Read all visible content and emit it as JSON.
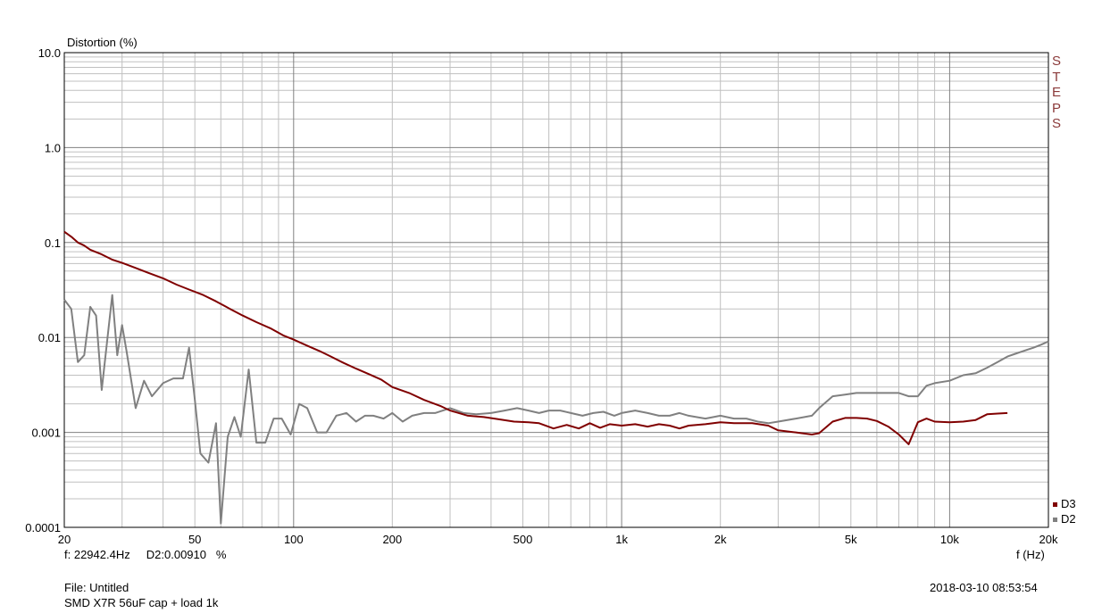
{
  "chart_data": {
    "type": "line",
    "ylabel": "Distortion (%)",
    "xlabel": "f (Hz)",
    "x_scale": "log",
    "y_scale": "log",
    "xlim": [
      20,
      20000
    ],
    "ylim": [
      0.0001,
      10.0
    ],
    "grid": true,
    "legend_position": "bottom-right",
    "x_ticks": [
      {
        "value": 20,
        "label": "20"
      },
      {
        "value": 50,
        "label": "50"
      },
      {
        "value": 100,
        "label": "100"
      },
      {
        "value": 200,
        "label": "200"
      },
      {
        "value": 500,
        "label": "500"
      },
      {
        "value": 1000,
        "label": "1k"
      },
      {
        "value": 2000,
        "label": "2k"
      },
      {
        "value": 5000,
        "label": "5k"
      },
      {
        "value": 10000,
        "label": "10k"
      },
      {
        "value": 20000,
        "label": "20k"
      }
    ],
    "y_ticks": [
      {
        "value": 10,
        "label": "10.0"
      },
      {
        "value": 1,
        "label": "1.0"
      },
      {
        "value": 0.1,
        "label": "0.1"
      },
      {
        "value": 0.01,
        "label": "0.01"
      },
      {
        "value": 0.001,
        "label": "0.001"
      },
      {
        "value": 0.0001,
        "label": "0.0001"
      }
    ],
    "series": [
      {
        "name": "D3",
        "color": "#800000",
        "points": [
          [
            20,
            0.13
          ],
          [
            21,
            0.115
          ],
          [
            22,
            0.1
          ],
          [
            23,
            0.093
          ],
          [
            24,
            0.084
          ],
          [
            26,
            0.075
          ],
          [
            28,
            0.066
          ],
          [
            30,
            0.061
          ],
          [
            33,
            0.054
          ],
          [
            36,
            0.048
          ],
          [
            40,
            0.042
          ],
          [
            44,
            0.036
          ],
          [
            48,
            0.032
          ],
          [
            53,
            0.028
          ],
          [
            58,
            0.024
          ],
          [
            64,
            0.02
          ],
          [
            70,
            0.017
          ],
          [
            77,
            0.0145
          ],
          [
            85,
            0.0125
          ],
          [
            93,
            0.0105
          ],
          [
            100,
            0.0095
          ],
          [
            110,
            0.0082
          ],
          [
            120,
            0.0072
          ],
          [
            130,
            0.0063
          ],
          [
            142,
            0.0054
          ],
          [
            155,
            0.0047
          ],
          [
            170,
            0.0041
          ],
          [
            185,
            0.0036
          ],
          [
            200,
            0.003
          ],
          [
            225,
            0.0026
          ],
          [
            250,
            0.0022
          ],
          [
            280,
            0.0019
          ],
          [
            300,
            0.0017
          ],
          [
            340,
            0.0015
          ],
          [
            380,
            0.00145
          ],
          [
            420,
            0.00138
          ],
          [
            470,
            0.0013
          ],
          [
            520,
            0.00128
          ],
          [
            560,
            0.00125
          ],
          [
            620,
            0.0011
          ],
          [
            680,
            0.0012
          ],
          [
            740,
            0.0011
          ],
          [
            800,
            0.00125
          ],
          [
            860,
            0.00112
          ],
          [
            920,
            0.00122
          ],
          [
            1000,
            0.00118
          ],
          [
            1100,
            0.00122
          ],
          [
            1200,
            0.00115
          ],
          [
            1300,
            0.00122
          ],
          [
            1400,
            0.00118
          ],
          [
            1500,
            0.0011
          ],
          [
            1600,
            0.00118
          ],
          [
            1800,
            0.00122
          ],
          [
            2000,
            0.00128
          ],
          [
            2200,
            0.00125
          ],
          [
            2500,
            0.00125
          ],
          [
            2800,
            0.00118
          ],
          [
            3000,
            0.00105
          ],
          [
            3400,
            0.001
          ],
          [
            3800,
            0.00095
          ],
          [
            4000,
            0.00098
          ],
          [
            4400,
            0.0013
          ],
          [
            4800,
            0.00142
          ],
          [
            5200,
            0.00142
          ],
          [
            5600,
            0.0014
          ],
          [
            6000,
            0.00132
          ],
          [
            6500,
            0.00115
          ],
          [
            7000,
            0.00095
          ],
          [
            7500,
            0.00075
          ],
          [
            8000,
            0.00128
          ],
          [
            8500,
            0.0014
          ],
          [
            9000,
            0.0013
          ],
          [
            10000,
            0.00128
          ],
          [
            11000,
            0.0013
          ],
          [
            12000,
            0.00135
          ],
          [
            13000,
            0.00155
          ],
          [
            14000,
            0.00158
          ],
          [
            15000,
            0.0016
          ]
        ]
      },
      {
        "name": "D2",
        "color": "#808080",
        "points": [
          [
            20,
            0.025
          ],
          [
            21,
            0.02
          ],
          [
            22,
            0.0055
          ],
          [
            23,
            0.0065
          ],
          [
            24,
            0.021
          ],
          [
            25,
            0.017
          ],
          [
            26,
            0.0028
          ],
          [
            28,
            0.028
          ],
          [
            29,
            0.0065
          ],
          [
            30,
            0.0135
          ],
          [
            31,
            0.007
          ],
          [
            33,
            0.0018
          ],
          [
            35,
            0.0035
          ],
          [
            37,
            0.0024
          ],
          [
            40,
            0.0033
          ],
          [
            43,
            0.0037
          ],
          [
            46,
            0.0037
          ],
          [
            48,
            0.0078
          ],
          [
            50,
            0.0022
          ],
          [
            52,
            0.0006
          ],
          [
            55,
            0.00048
          ],
          [
            58,
            0.00125
          ],
          [
            60,
            0.00011
          ],
          [
            63,
            0.0009
          ],
          [
            66,
            0.00145
          ],
          [
            69,
            0.0009
          ],
          [
            73,
            0.0046
          ],
          [
            77,
            0.00078
          ],
          [
            82,
            0.00078
          ],
          [
            87,
            0.0014
          ],
          [
            92,
            0.0014
          ],
          [
            98,
            0.00095
          ],
          [
            104,
            0.002
          ],
          [
            110,
            0.0018
          ],
          [
            118,
            0.001
          ],
          [
            126,
            0.001
          ],
          [
            135,
            0.0015
          ],
          [
            145,
            0.0016
          ],
          [
            155,
            0.0013
          ],
          [
            165,
            0.0015
          ],
          [
            175,
            0.0015
          ],
          [
            188,
            0.0014
          ],
          [
            200,
            0.0016
          ],
          [
            215,
            0.0013
          ],
          [
            230,
            0.0015
          ],
          [
            250,
            0.0016
          ],
          [
            270,
            0.0016
          ],
          [
            300,
            0.0018
          ],
          [
            330,
            0.0016
          ],
          [
            360,
            0.00155
          ],
          [
            400,
            0.0016
          ],
          [
            440,
            0.0017
          ],
          [
            480,
            0.0018
          ],
          [
            520,
            0.0017
          ],
          [
            560,
            0.0016
          ],
          [
            600,
            0.0017
          ],
          [
            650,
            0.0017
          ],
          [
            700,
            0.0016
          ],
          [
            760,
            0.0015
          ],
          [
            820,
            0.0016
          ],
          [
            880,
            0.00165
          ],
          [
            950,
            0.0015
          ],
          [
            1000,
            0.0016
          ],
          [
            1100,
            0.0017
          ],
          [
            1200,
            0.0016
          ],
          [
            1300,
            0.0015
          ],
          [
            1400,
            0.0015
          ],
          [
            1500,
            0.0016
          ],
          [
            1600,
            0.0015
          ],
          [
            1800,
            0.0014
          ],
          [
            2000,
            0.0015
          ],
          [
            2200,
            0.0014
          ],
          [
            2400,
            0.0014
          ],
          [
            2600,
            0.0013
          ],
          [
            2800,
            0.00125
          ],
          [
            3000,
            0.0013
          ],
          [
            3400,
            0.0014
          ],
          [
            3800,
            0.0015
          ],
          [
            4000,
            0.0018
          ],
          [
            4400,
            0.0024
          ],
          [
            4800,
            0.0025
          ],
          [
            5200,
            0.0026
          ],
          [
            6000,
            0.0026
          ],
          [
            7000,
            0.0026
          ],
          [
            7500,
            0.0024
          ],
          [
            8000,
            0.0024
          ],
          [
            8500,
            0.0031
          ],
          [
            9000,
            0.0033
          ],
          [
            10000,
            0.0035
          ],
          [
            11000,
            0.004
          ],
          [
            12000,
            0.0042
          ],
          [
            13000,
            0.0048
          ],
          [
            14000,
            0.0055
          ],
          [
            15000,
            0.0063
          ],
          [
            16000,
            0.0068
          ],
          [
            17000,
            0.0073
          ],
          [
            18000,
            0.0078
          ],
          [
            19000,
            0.0084
          ],
          [
            20000,
            0.0091
          ]
        ]
      }
    ]
  },
  "cursor_readout": "f: 22942.4Hz     D2:0.00910   %",
  "file_label": "File: Untitled",
  "description": "SMD X7R 56uF cap + load 1k",
  "timestamp": "2018-03-10 08:53:54",
  "steps_label": [
    "S",
    "T",
    "E",
    "P",
    "S"
  ],
  "legend": [
    {
      "name": "D3",
      "color": "#800000"
    },
    {
      "name": "D2",
      "color": "#808080"
    }
  ]
}
